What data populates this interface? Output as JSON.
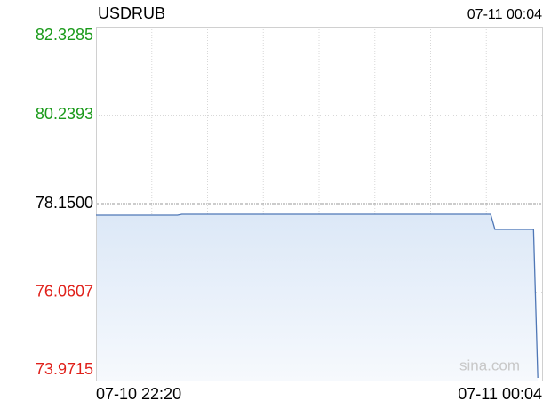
{
  "chart_data": {
    "type": "line",
    "title": "USDRUB",
    "timestamp": "07-11 00:04",
    "watermark": "sina.com",
    "x": [
      "07-10 22:20",
      "07-10 22:39",
      "07-10 22:40",
      "07-10 23:52",
      "07-10 23:53",
      "07-11 00:02",
      "07-11 00:03"
    ],
    "series": [
      {
        "name": "USDRUB",
        "color": "#4f77b6",
        "values": [
          77.877,
          77.877,
          77.898,
          77.898,
          77.541,
          77.541,
          74.034
        ]
      }
    ],
    "xlim": [
      "07-10 22:20",
      "07-11 00:04"
    ],
    "xticks": [
      "07-10 22:20",
      "07-11 00:04"
    ],
    "xgrid_divisions": 8,
    "ylim": [
      73.9715,
      82.3285
    ],
    "yticks": [
      {
        "value": 82.3285,
        "label": "82.3285"
      },
      {
        "value": 80.2393,
        "label": "80.2393"
      },
      {
        "value": 78.15,
        "label": "78.1500"
      },
      {
        "value": 76.0607,
        "label": "76.0607"
      },
      {
        "value": 73.9715,
        "label": "73.9715"
      }
    ],
    "reference": 78.15,
    "up_color": "#1a9a1a",
    "down_color": "#e0201a",
    "flat_color": "#000000",
    "grid": true
  }
}
